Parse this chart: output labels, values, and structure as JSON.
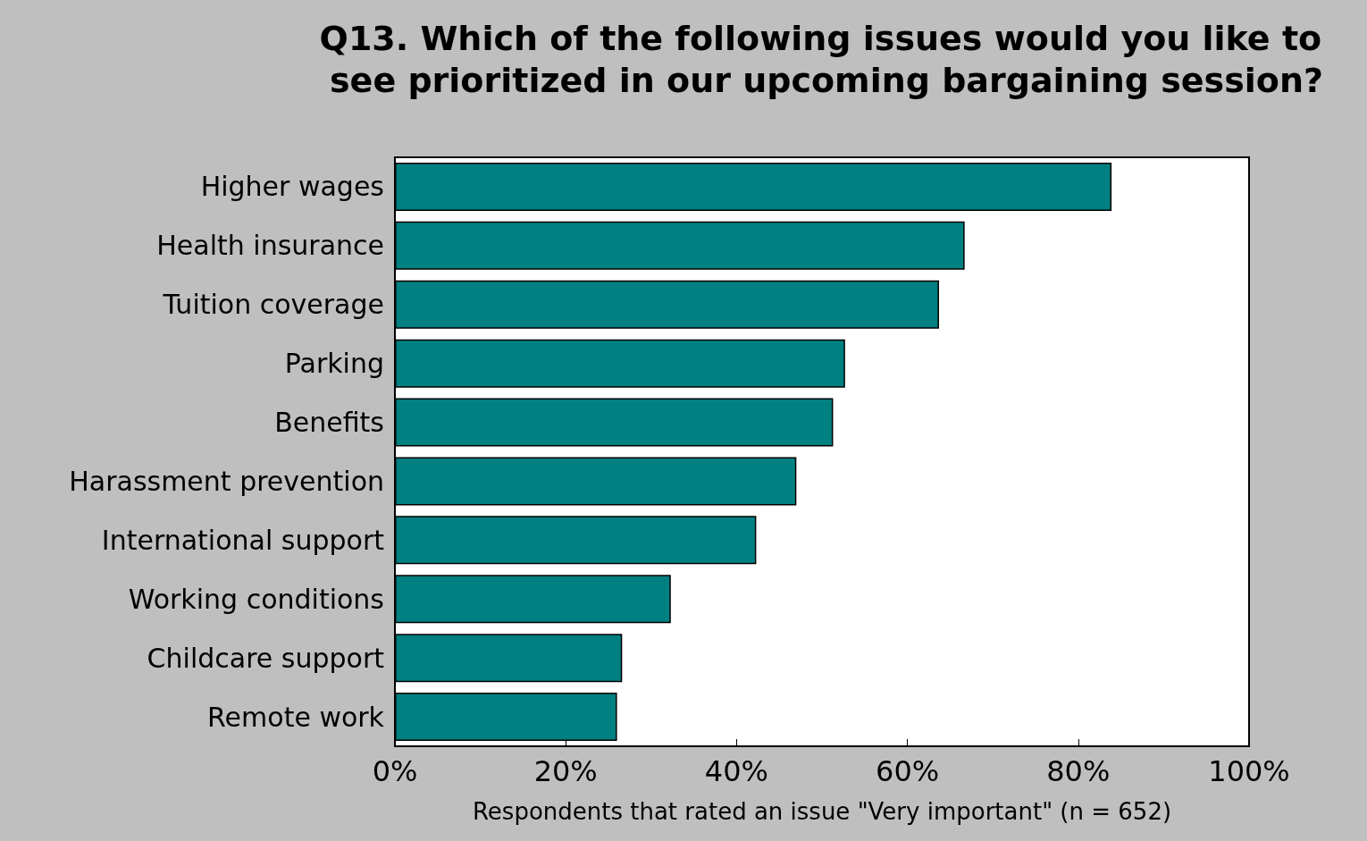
{
  "chart_data": {
    "type": "bar",
    "orientation": "horizontal",
    "title": "Q13. Which of the following issues would you like to see prioritized in our upcoming bargaining session?",
    "xlabel": "Respondents that rated an issue \"Very important\" (n = 652)",
    "categories": [
      "Higher wages",
      "Health insurance",
      "Tuition coverage",
      "Parking",
      "Benefits",
      "Harassment prevention",
      "International support",
      "Working conditions",
      "Childcare support",
      "Remote work"
    ],
    "values": [
      83.9,
      66.7,
      63.7,
      52.7,
      51.3,
      47.0,
      42.3,
      32.3,
      26.6,
      26.0
    ],
    "color": "#008080",
    "xlim": [
      0,
      100
    ],
    "xticks": [
      {
        "value": 0,
        "label": "0%"
      },
      {
        "value": 20,
        "label": "20%"
      },
      {
        "value": 40,
        "label": "40%"
      },
      {
        "value": 60,
        "label": "60%"
      },
      {
        "value": 80,
        "label": "80%"
      },
      {
        "value": 100,
        "label": "100%"
      }
    ],
    "grid": false
  }
}
